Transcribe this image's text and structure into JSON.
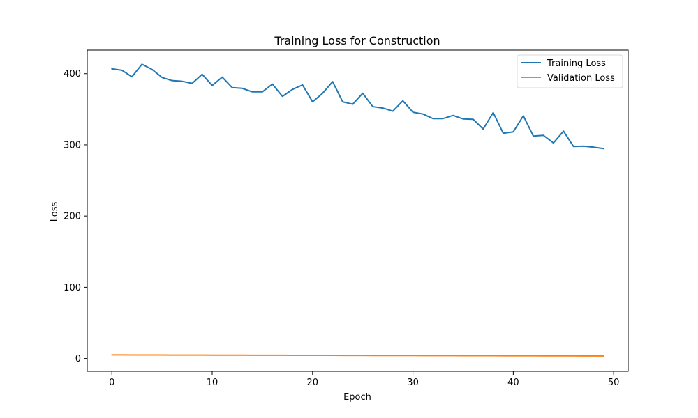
{
  "chart_data": {
    "type": "line",
    "title": "Training Loss for Construction",
    "xlabel": "Epoch",
    "ylabel": "Loss",
    "xlim": [
      -2.45,
      51.45
    ],
    "ylim": [
      -18,
      433
    ],
    "xticks": [
      0,
      10,
      20,
      30,
      40,
      50
    ],
    "yticks": [
      0,
      100,
      200,
      300,
      400
    ],
    "grid": false,
    "legend_position": "top-right",
    "x": [
      0,
      1,
      2,
      3,
      4,
      5,
      6,
      7,
      8,
      9,
      10,
      11,
      12,
      13,
      14,
      15,
      16,
      17,
      18,
      19,
      20,
      21,
      22,
      23,
      24,
      25,
      26,
      27,
      28,
      29,
      30,
      31,
      32,
      33,
      34,
      35,
      36,
      37,
      38,
      39,
      40,
      41,
      42,
      43,
      44,
      45,
      46,
      47,
      48,
      49
    ],
    "series": [
      {
        "name": "Training Loss",
        "color": "#1f77b4",
        "values": [
          406.8,
          404.8,
          395.6,
          413.2,
          406,
          394.7,
          390.3,
          389.3,
          386.4,
          399.1,
          383.4,
          395.2,
          380.4,
          379.4,
          374.5,
          374.5,
          385.3,
          368.2,
          377.9,
          384.2,
          360.5,
          372.5,
          388.8,
          360.5,
          357.1,
          372.5,
          353.7,
          351.7,
          347.3,
          361.9,
          345.8,
          343.3,
          336.9,
          336.9,
          341.3,
          336.4,
          335.9,
          322.2,
          345.3,
          316.3,
          318.3,
          340.8,
          312.4,
          313.4,
          302.7,
          319.3,
          297.8,
          298.2,
          296.8,
          294.8
        ]
      },
      {
        "name": "Validation Loss",
        "color": "#ff7f0e",
        "values": [
          5.1,
          5.07,
          5.04,
          5.01,
          4.98,
          4.95,
          4.92,
          4.89,
          4.86,
          4.83,
          4.8,
          4.77,
          4.74,
          4.71,
          4.68,
          4.65,
          4.62,
          4.59,
          4.56,
          4.53,
          4.5,
          4.47,
          4.44,
          4.41,
          4.38,
          4.35,
          4.32,
          4.29,
          4.26,
          4.23,
          4.2,
          4.17,
          4.14,
          4.11,
          4.08,
          4.05,
          4.02,
          3.99,
          3.96,
          3.93,
          3.9,
          3.87,
          3.84,
          3.81,
          3.78,
          3.75,
          3.72,
          3.69,
          3.66,
          3.63
        ]
      }
    ]
  }
}
